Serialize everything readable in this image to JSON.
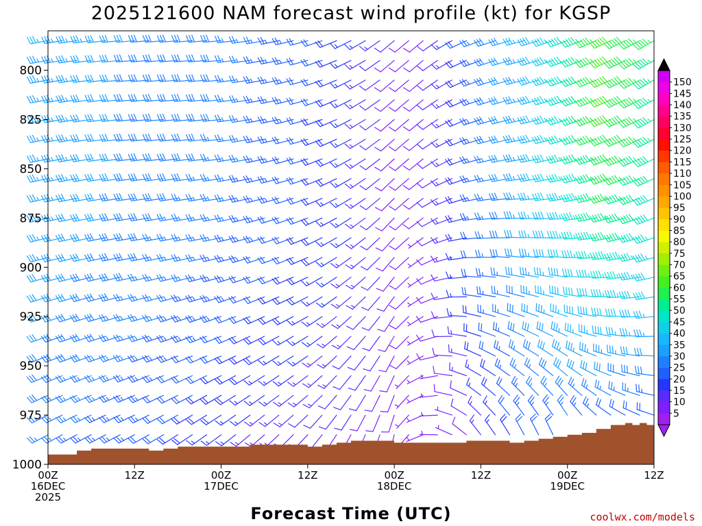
{
  "title": "2025121600 NAM forecast wind profile (kt) for KGSP",
  "credit": "coolwx.com/models",
  "chart_data": {
    "type": "wind-barb-time-height",
    "title": "2025121600 NAM forecast wind profile (kt) for KGSP",
    "xlabel": "Forecast Time (UTC)",
    "ylabel": "",
    "x_unit": "forecast hour",
    "xlim": [
      0,
      84
    ],
    "y_unit": "hPa",
    "ylim": [
      1000,
      780
    ],
    "y_ticks": [
      800,
      825,
      850,
      875,
      900,
      925,
      950,
      975,
      1000
    ],
    "x_ticks": [
      {
        "hour": 0,
        "lines": [
          "00Z",
          "16DEC",
          "2025"
        ]
      },
      {
        "hour": 12,
        "lines": [
          "12Z"
        ]
      },
      {
        "hour": 24,
        "lines": [
          "00Z",
          "17DEC"
        ]
      },
      {
        "hour": 36,
        "lines": [
          "12Z"
        ]
      },
      {
        "hour": 48,
        "lines": [
          "00Z",
          "18DEC"
        ]
      },
      {
        "hour": 60,
        "lines": [
          "12Z"
        ]
      },
      {
        "hour": 72,
        "lines": [
          "00Z",
          "19DEC"
        ]
      },
      {
        "hour": 84,
        "lines": [
          "12Z"
        ]
      }
    ],
    "barb_hour_step": 2,
    "barb_levels_hpa": [
      785,
      795,
      805,
      815,
      825,
      835,
      845,
      855,
      865,
      875,
      885,
      895,
      905,
      915,
      925,
      935,
      945,
      955,
      965,
      975,
      985,
      995
    ],
    "control_hours": [
      0,
      12,
      24,
      36,
      44,
      48,
      52,
      56,
      60,
      66,
      72,
      78,
      84
    ],
    "wind_speed_upper_kt": [
      35,
      30,
      28,
      22,
      15,
      10,
      8,
      15,
      25,
      35,
      48,
      62,
      55
    ],
    "wind_speed_sfc_kt": [
      25,
      22,
      15,
      10,
      8,
      8,
      5,
      5,
      12,
      20,
      20,
      12,
      12
    ],
    "wind_dir_upper_deg": [
      260,
      265,
      265,
      255,
      240,
      230,
      230,
      240,
      250,
      255,
      250,
      245,
      240
    ],
    "wind_dir_sfc_deg": [
      240,
      240,
      230,
      220,
      200,
      190,
      250,
      300,
      330,
      340,
      345,
      320,
      300
    ],
    "terrain_hpa": [
      {
        "h": 0,
        "p": 995
      },
      {
        "h": 2,
        "p": 995
      },
      {
        "h": 4,
        "p": 993
      },
      {
        "h": 6,
        "p": 992
      },
      {
        "h": 8,
        "p": 992
      },
      {
        "h": 10,
        "p": 992
      },
      {
        "h": 12,
        "p": 992
      },
      {
        "h": 14,
        "p": 993
      },
      {
        "h": 16,
        "p": 992
      },
      {
        "h": 18,
        "p": 991
      },
      {
        "h": 20,
        "p": 991
      },
      {
        "h": 22,
        "p": 991
      },
      {
        "h": 24,
        "p": 991
      },
      {
        "h": 26,
        "p": 991
      },
      {
        "h": 28,
        "p": 990
      },
      {
        "h": 30,
        "p": 990
      },
      {
        "h": 32,
        "p": 990
      },
      {
        "h": 34,
        "p": 990
      },
      {
        "h": 36,
        "p": 991
      },
      {
        "h": 38,
        "p": 990
      },
      {
        "h": 40,
        "p": 989
      },
      {
        "h": 42,
        "p": 988
      },
      {
        "h": 44,
        "p": 988
      },
      {
        "h": 46,
        "p": 988
      },
      {
        "h": 48,
        "p": 989
      },
      {
        "h": 50,
        "p": 989
      },
      {
        "h": 52,
        "p": 989
      },
      {
        "h": 54,
        "p": 989
      },
      {
        "h": 56,
        "p": 989
      },
      {
        "h": 58,
        "p": 988
      },
      {
        "h": 60,
        "p": 988
      },
      {
        "h": 62,
        "p": 988
      },
      {
        "h": 64,
        "p": 989
      },
      {
        "h": 66,
        "p": 988
      },
      {
        "h": 68,
        "p": 987
      },
      {
        "h": 70,
        "p": 986
      },
      {
        "h": 72,
        "p": 985
      },
      {
        "h": 74,
        "p": 984
      },
      {
        "h": 76,
        "p": 982
      },
      {
        "h": 78,
        "p": 980
      },
      {
        "h": 80,
        "p": 979
      },
      {
        "h": 81,
        "p": 980
      },
      {
        "h": 82,
        "p": 979
      },
      {
        "h": 83,
        "p": 980
      },
      {
        "h": 84,
        "p": 981
      }
    ],
    "colorbar": {
      "unit": "kt",
      "min": 0,
      "max": 155,
      "labels": [
        5,
        10,
        15,
        20,
        25,
        30,
        35,
        40,
        45,
        50,
        55,
        60,
        65,
        70,
        75,
        80,
        85,
        90,
        95,
        100,
        105,
        110,
        115,
        120,
        125,
        130,
        135,
        140,
        145,
        150
      ],
      "colors": [
        "#a020f0",
        "#7f1fff",
        "#5a2bff",
        "#2535ff",
        "#2060ff",
        "#1e80ff",
        "#1aa0ff",
        "#16b8ff",
        "#10d0e8",
        "#00e6c8",
        "#00ee90",
        "#20f050",
        "#44f020",
        "#70f010",
        "#a0f000",
        "#d0f000",
        "#f8f800",
        "#ffe000",
        "#ffc400",
        "#ffa800",
        "#ff9000",
        "#ff7800",
        "#ff5c00",
        "#ff3800",
        "#ff1000",
        "#ff0030",
        "#ff0060",
        "#ff0090",
        "#ff00c0",
        "#f000e8",
        "#d000f8"
      ],
      "arrow_top_color": "#000000",
      "arrow_bottom_color": "#a020f0"
    },
    "terrain_color": "#a0522d"
  }
}
